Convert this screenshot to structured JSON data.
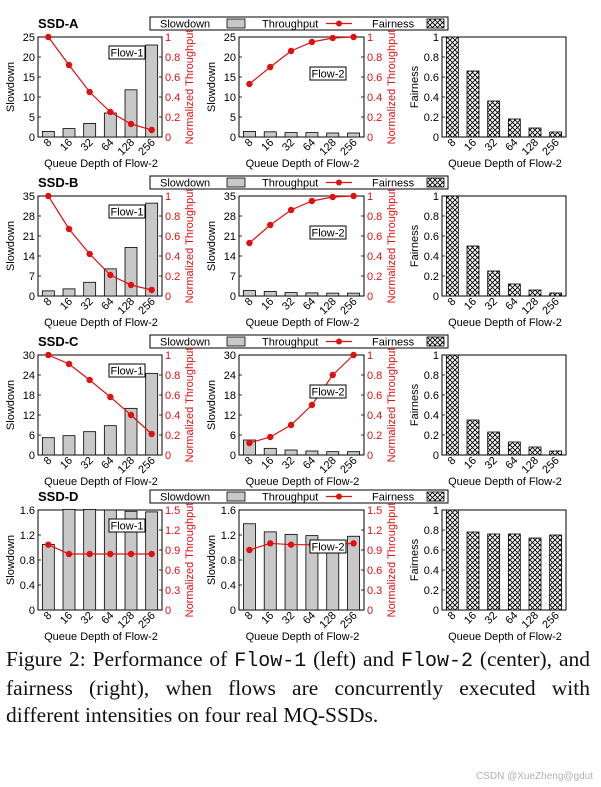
{
  "caption": {
    "prefix": "Figure 2:  Performance of ",
    "flow1": "Flow-1",
    "mid1": " (left) and ",
    "flow2": "Flow-2",
    "rest": " (center), and fairness (right), when flows are concurrently executed with different intensities on four real MQ-SSDs."
  },
  "watermark": "CSDN @XueZheng@gdut",
  "colors": {
    "bar": "#c8c8c8",
    "throughput": "#e01010",
    "axis": "#000000"
  },
  "chart_data": [
    {
      "ssd": "SSD-A",
      "type": "bar",
      "legend": {
        "slowdown": "Slowdown",
        "throughput": "Throughput",
        "fairness": "Fairness"
      },
      "categories": [
        "8",
        "16",
        "32",
        "64",
        "128",
        "256"
      ],
      "xlabel": "Queue Depth of Flow-2",
      "flow1": {
        "label": "Flow-1",
        "ylabel": "Slowdown",
        "y2label": "Normalized Throughput",
        "ylim": [
          0,
          25
        ],
        "yticks": [
          "0",
          "5",
          "10",
          "15",
          "20",
          "25"
        ],
        "y2lim": [
          0,
          1
        ],
        "y2ticks": [
          "0",
          "0.2",
          "0.4",
          "0.6",
          "0.8",
          "1"
        ],
        "slowdown": [
          1.4,
          2.1,
          3.4,
          6.0,
          11.8,
          23.0
        ],
        "throughput": [
          1.0,
          0.72,
          0.45,
          0.25,
          0.13,
          0.07
        ]
      },
      "flow2": {
        "label": "Flow-2",
        "ylim": [
          0,
          25
        ],
        "yticks": [
          "0",
          "5",
          "10",
          "15",
          "20",
          "25"
        ],
        "y2lim": [
          0,
          1
        ],
        "y2ticks": [
          "0",
          "0.2",
          "0.4",
          "0.6",
          "0.8",
          "1"
        ],
        "slowdown": [
          1.4,
          1.3,
          1.1,
          1.1,
          1.0,
          1.0
        ],
        "throughput": [
          0.53,
          0.7,
          0.86,
          0.95,
          0.99,
          1.0
        ]
      },
      "fairness": {
        "ylabel": "Fairness",
        "ylim": [
          0,
          1
        ],
        "yticks": [
          "0",
          "0.2",
          "0.4",
          "0.6",
          "0.8",
          "1"
        ],
        "values": [
          1.0,
          0.66,
          0.36,
          0.18,
          0.09,
          0.05
        ]
      }
    },
    {
      "ssd": "SSD-B",
      "type": "bar",
      "legend": {
        "slowdown": "Slowdown",
        "throughput": "Throughput",
        "fairness": "Fairness"
      },
      "categories": [
        "8",
        "16",
        "32",
        "64",
        "128",
        "256"
      ],
      "xlabel": "Queue Depth of Flow-2",
      "flow1": {
        "label": "Flow-1",
        "ylabel": "Slowdown",
        "y2label": "Normalized Throughput",
        "ylim": [
          0,
          35
        ],
        "yticks": [
          "0",
          "7",
          "14",
          "21",
          "28",
          "35"
        ],
        "y2lim": [
          0,
          1
        ],
        "y2ticks": [
          "0",
          "0.2",
          "0.4",
          "0.6",
          "0.8",
          "1"
        ],
        "slowdown": [
          1.8,
          2.5,
          4.8,
          9.5,
          17.0,
          32.5
        ],
        "throughput": [
          1.0,
          0.67,
          0.42,
          0.21,
          0.11,
          0.06
        ]
      },
      "flow2": {
        "label": "Flow-2",
        "ylim": [
          0,
          35
        ],
        "yticks": [
          "0",
          "7",
          "14",
          "21",
          "28",
          "35"
        ],
        "y2lim": [
          0,
          1
        ],
        "y2ticks": [
          "0",
          "0.2",
          "0.4",
          "0.6",
          "0.8",
          "1"
        ],
        "slowdown": [
          1.9,
          1.6,
          1.2,
          1.1,
          1.0,
          1.0
        ],
        "throughput": [
          0.53,
          0.71,
          0.86,
          0.95,
          0.99,
          1.0
        ]
      },
      "fairness": {
        "ylabel": "Fairness",
        "ylim": [
          0,
          1
        ],
        "yticks": [
          "0",
          "0.2",
          "0.4",
          "0.6",
          "0.8",
          "1"
        ],
        "values": [
          1.0,
          0.5,
          0.25,
          0.12,
          0.06,
          0.03
        ]
      }
    },
    {
      "ssd": "SSD-C",
      "type": "bar",
      "legend": {
        "slowdown": "Slowdown",
        "throughput": "Throughput",
        "fairness": "Fairness"
      },
      "categories": [
        "8",
        "16",
        "32",
        "64",
        "128",
        "256"
      ],
      "xlabel": "Queue Depth of Flow-2",
      "flow1": {
        "label": "Flow-1",
        "ylabel": "Slowdown",
        "y2label": "Normalized Throughput",
        "ylim": [
          0,
          30
        ],
        "yticks": [
          "0",
          "6",
          "12",
          "18",
          "24",
          "30"
        ],
        "y2lim": [
          0,
          1
        ],
        "y2ticks": [
          "0",
          "0.2",
          "0.4",
          "0.6",
          "0.8",
          "1"
        ],
        "slowdown": [
          5.2,
          5.8,
          7.0,
          8.8,
          14.0,
          24.5
        ],
        "throughput": [
          1.0,
          0.91,
          0.75,
          0.58,
          0.4,
          0.21
        ]
      },
      "flow2": {
        "label": "Flow-2",
        "ylim": [
          0,
          30
        ],
        "yticks": [
          "0",
          "6",
          "12",
          "18",
          "24",
          "30"
        ],
        "y2lim": [
          0,
          1
        ],
        "y2ticks": [
          "0",
          "0.2",
          "0.4",
          "0.6",
          "0.8",
          "1"
        ],
        "slowdown": [
          4.5,
          2.0,
          1.5,
          1.2,
          1.0,
          1.0
        ],
        "throughput": [
          0.12,
          0.18,
          0.3,
          0.5,
          0.8,
          1.0
        ]
      },
      "fairness": {
        "ylabel": "Fairness",
        "ylim": [
          0,
          1
        ],
        "yticks": [
          "0",
          "0.2",
          "0.4",
          "0.6",
          "0.8",
          "1"
        ],
        "values": [
          1.0,
          0.35,
          0.23,
          0.13,
          0.08,
          0.04
        ]
      }
    },
    {
      "ssd": "SSD-D",
      "type": "bar",
      "legend": {
        "slowdown": "Slowdown",
        "throughput": "Throughput",
        "fairness": "Fairness"
      },
      "categories": [
        "8",
        "16",
        "32",
        "64",
        "128",
        "256"
      ],
      "xlabel": "Queue Depth of Flow-2",
      "flow1": {
        "label": "Flow-1",
        "ylabel": "Slowdown",
        "y2label": "Normalized Throughput",
        "ylim": [
          0,
          1.6
        ],
        "yticks": [
          "0",
          "0.4",
          "0.8",
          "1.2",
          "1.6"
        ],
        "y2lim": [
          0,
          1.5
        ],
        "y2ticks": [
          "0",
          "0.3",
          "0.6",
          "0.9",
          "1.2",
          "1.5"
        ],
        "slowdown": [
          1.05,
          1.61,
          1.61,
          1.6,
          1.58,
          1.57
        ],
        "throughput": [
          0.98,
          0.84,
          0.84,
          0.84,
          0.84,
          0.84
        ]
      },
      "flow2": {
        "label": "Flow-2",
        "ylim": [
          0,
          1.6
        ],
        "yticks": [
          "0",
          "0.4",
          "0.8",
          "1.2",
          "1.6"
        ],
        "y2lim": [
          0,
          1.5
        ],
        "y2ticks": [
          "0",
          "0.3",
          "0.6",
          "0.9",
          "1.2",
          "1.5"
        ],
        "slowdown": [
          1.38,
          1.25,
          1.21,
          1.19,
          1.12,
          1.18
        ],
        "throughput": [
          0.9,
          1.0,
          0.98,
          0.98,
          0.98,
          1.0
        ]
      },
      "fairness": {
        "ylabel": "Fairness",
        "ylim": [
          0,
          1
        ],
        "yticks": [
          "0",
          "0.2",
          "0.4",
          "0.6",
          "0.8",
          "1"
        ],
        "values": [
          1.0,
          0.78,
          0.76,
          0.76,
          0.72,
          0.75
        ]
      }
    }
  ]
}
